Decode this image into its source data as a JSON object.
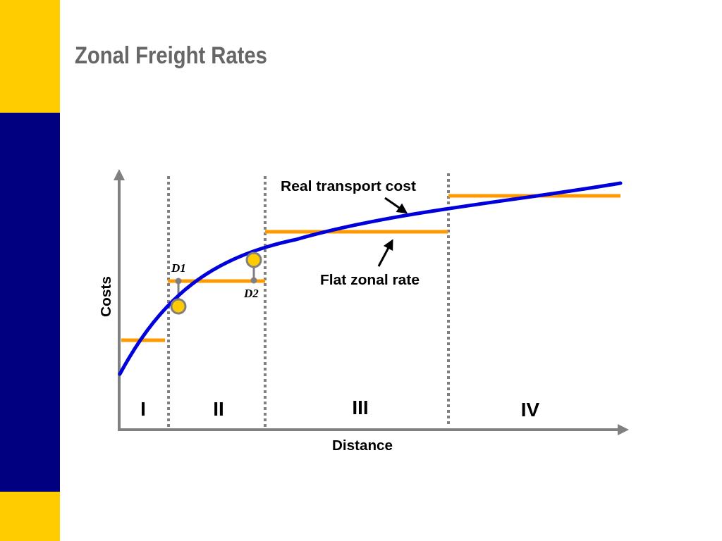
{
  "slide": {
    "title": "Zonal Freight Rates",
    "colors": {
      "band_yellow": "#FFCC00",
      "band_navy": "#000080",
      "title_gray": "#666666"
    }
  },
  "chart_data": {
    "type": "line",
    "title": "Zonal Freight Rates",
    "xlabel": "Distance",
    "ylabel": "Costs",
    "grid": false,
    "zones": [
      {
        "label": "I"
      },
      {
        "label": "II"
      },
      {
        "label": "III"
      },
      {
        "label": "IV"
      }
    ],
    "series": [
      {
        "name": "Real transport cost",
        "color": "#0000DD"
      },
      {
        "name": "Flat zonal rate",
        "color": "#FF9900"
      }
    ],
    "annotations": [
      {
        "text": "Real transport cost",
        "points_to": "Real transport cost"
      },
      {
        "text": "Flat zonal rate",
        "points_to": "Flat zonal rate"
      }
    ],
    "markers": [
      {
        "label": "D1",
        "zone": "II"
      },
      {
        "label": "D2",
        "zone": "II"
      }
    ],
    "colors": {
      "axis": "#808080",
      "divider": "#808080",
      "marker_fill": "#FFCC00",
      "marker_stroke": "#808080"
    }
  }
}
